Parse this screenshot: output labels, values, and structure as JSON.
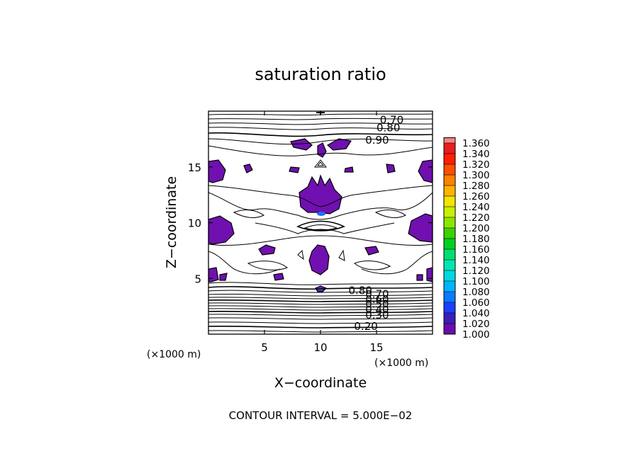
{
  "chart_data": {
    "type": "contour",
    "title": "saturation ratio",
    "xlabel": "X−coordinate",
    "ylabel": "Z−coordinate",
    "x_unit": "(×1000 m)",
    "z_unit": "(×1000 m)",
    "xlim": [
      0,
      20
    ],
    "ylim": [
      0,
      20
    ],
    "x_ticks": [
      5,
      10,
      15
    ],
    "y_ticks": [
      5,
      10,
      15
    ],
    "footer": "CONTOUR INTERVAL = 5.000E−02",
    "contour_labels": [
      {
        "text": "0.70",
        "x": 15.3,
        "z": 19.2
      },
      {
        "text": "0.80",
        "x": 15.0,
        "z": 18.5
      },
      {
        "text": "0.90",
        "x": 14.0,
        "z": 17.4
      },
      {
        "text": "0.80",
        "x": 12.5,
        "z": 3.9
      },
      {
        "text": "0.70",
        "x": 14.0,
        "z": 3.6
      },
      {
        "text": "0.60",
        "x": 14.0,
        "z": 3.1
      },
      {
        "text": "0.50",
        "x": 14.0,
        "z": 2.7
      },
      {
        "text": "0.40",
        "x": 14.0,
        "z": 2.2
      },
      {
        "text": "0.30",
        "x": 14.0,
        "z": 1.7
      },
      {
        "text": "0.20",
        "x": 13.0,
        "z": 0.7
      }
    ],
    "colorbar": {
      "levels": [
        "1.000",
        "1.020",
        "1.040",
        "1.060",
        "1.080",
        "1.100",
        "1.120",
        "1.140",
        "1.160",
        "1.180",
        "1.200",
        "1.220",
        "1.240",
        "1.260",
        "1.280",
        "1.300",
        "1.320",
        "1.340",
        "1.360"
      ],
      "colors": [
        "#6a0dad",
        "#3a1fb8",
        "#1f3fff",
        "#0a7aff",
        "#00b4ff",
        "#00d8e0",
        "#00e6b4",
        "#00e070",
        "#00d21e",
        "#3cd200",
        "#8ce600",
        "#c8f000",
        "#f0e600",
        "#ffb400",
        "#ff8200",
        "#ff5000",
        "#ff2000",
        "#e61e1e",
        "#ff8080"
      ]
    },
    "filled_regions_color": "#7010b0",
    "filled_regions_level": "1.000"
  }
}
